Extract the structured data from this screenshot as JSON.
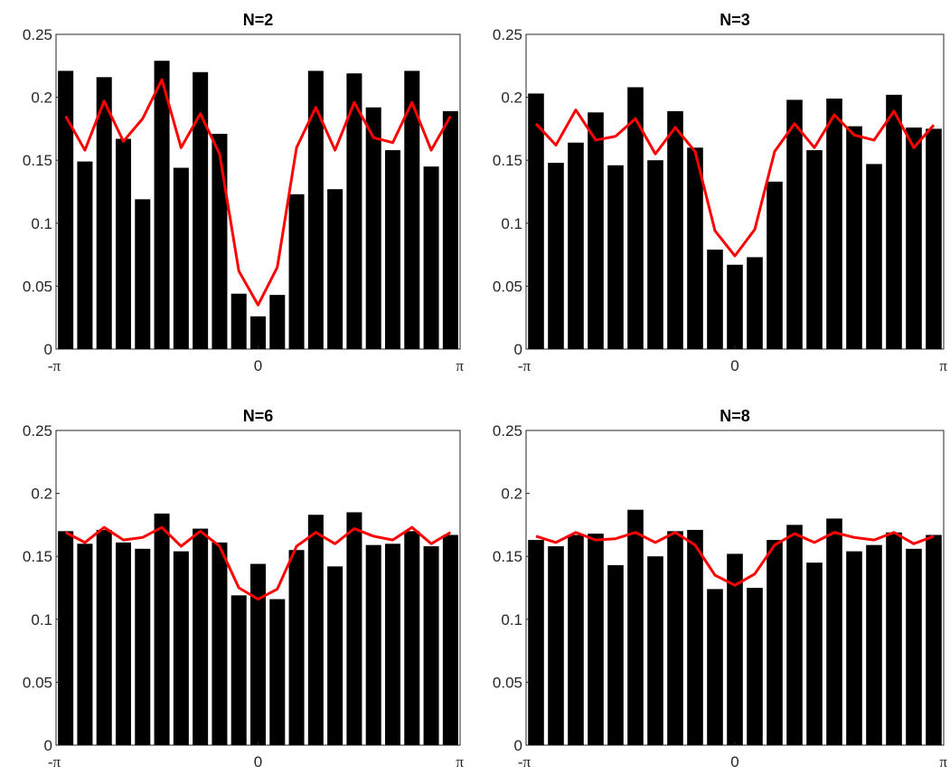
{
  "figure": {
    "background": "#ffffff"
  },
  "colors": {
    "bar": "#000000",
    "line": "#ff0000",
    "axis": "#262626"
  },
  "chart_data": [
    {
      "type": "bar",
      "title": "N=2",
      "bar_values": [
        0.221,
        0.149,
        0.216,
        0.167,
        0.119,
        0.229,
        0.144,
        0.22,
        0.171,
        0.044,
        0.026,
        0.043,
        0.123,
        0.221,
        0.127,
        0.219,
        0.192,
        0.158,
        0.221,
        0.145,
        0.189
      ],
      "line_values": [
        0.185,
        0.158,
        0.197,
        0.165,
        0.183,
        0.214,
        0.16,
        0.187,
        0.155,
        0.062,
        0.035,
        0.065,
        0.16,
        0.192,
        0.158,
        0.196,
        0.168,
        0.164,
        0.196,
        0.158,
        0.185
      ],
      "xlim": [
        "-π",
        "π"
      ],
      "x_tick_labels": [
        "-π",
        "0",
        "π"
      ],
      "ylim": [
        0,
        0.25
      ],
      "y_tick_labels": [
        "0",
        "0.05",
        "0.1",
        "0.15",
        "0.2",
        "0.25"
      ],
      "grid": false,
      "legend": "none"
    },
    {
      "type": "bar",
      "title": "N=3",
      "bar_values": [
        0.203,
        0.148,
        0.164,
        0.188,
        0.146,
        0.208,
        0.15,
        0.189,
        0.16,
        0.079,
        0.067,
        0.073,
        0.133,
        0.198,
        0.158,
        0.199,
        0.177,
        0.147,
        0.202,
        0.176,
        0.175
      ],
      "line_values": [
        0.179,
        0.162,
        0.19,
        0.166,
        0.169,
        0.183,
        0.155,
        0.176,
        0.157,
        0.094,
        0.074,
        0.095,
        0.157,
        0.179,
        0.16,
        0.186,
        0.17,
        0.166,
        0.189,
        0.16,
        0.178
      ],
      "xlim": [
        "-π",
        "π"
      ],
      "x_tick_labels": [
        "-π",
        "0",
        "π"
      ],
      "ylim": [
        0,
        0.25
      ],
      "y_tick_labels": [
        "0",
        "0.05",
        "0.1",
        "0.15",
        "0.2",
        "0.25"
      ],
      "grid": false,
      "legend": "none"
    },
    {
      "type": "bar",
      "title": "N=6",
      "bar_values": [
        0.17,
        0.16,
        0.171,
        0.161,
        0.156,
        0.184,
        0.154,
        0.172,
        0.161,
        0.119,
        0.144,
        0.116,
        0.155,
        0.183,
        0.142,
        0.185,
        0.159,
        0.16,
        0.17,
        0.158,
        0.167
      ],
      "line_values": [
        0.169,
        0.161,
        0.173,
        0.163,
        0.165,
        0.173,
        0.158,
        0.17,
        0.158,
        0.125,
        0.116,
        0.124,
        0.158,
        0.169,
        0.16,
        0.172,
        0.166,
        0.163,
        0.173,
        0.16,
        0.169
      ],
      "xlim": [
        "-π",
        "π"
      ],
      "x_tick_labels": [
        "-π",
        "0",
        "π"
      ],
      "ylim": [
        0,
        0.25
      ],
      "y_tick_labels": [
        "0",
        "0.05",
        "0.1",
        "0.15",
        "0.2",
        "0.25"
      ],
      "grid": false,
      "legend": "none"
    },
    {
      "type": "bar",
      "title": "N=8",
      "bar_values": [
        0.163,
        0.158,
        0.167,
        0.168,
        0.143,
        0.187,
        0.15,
        0.17,
        0.171,
        0.124,
        0.152,
        0.125,
        0.163,
        0.175,
        0.145,
        0.18,
        0.154,
        0.159,
        0.169,
        0.156,
        0.167
      ],
      "line_values": [
        0.166,
        0.161,
        0.169,
        0.163,
        0.164,
        0.169,
        0.161,
        0.169,
        0.159,
        0.135,
        0.127,
        0.136,
        0.159,
        0.168,
        0.161,
        0.169,
        0.165,
        0.163,
        0.169,
        0.16,
        0.166
      ],
      "xlim": [
        "-π",
        "π"
      ],
      "x_tick_labels": [
        "-π",
        "0",
        "π"
      ],
      "ylim": [
        0,
        0.25
      ],
      "y_tick_labels": [
        "0",
        "0.05",
        "0.1",
        "0.15",
        "0.2",
        "0.25"
      ],
      "grid": false,
      "legend": "none"
    }
  ]
}
